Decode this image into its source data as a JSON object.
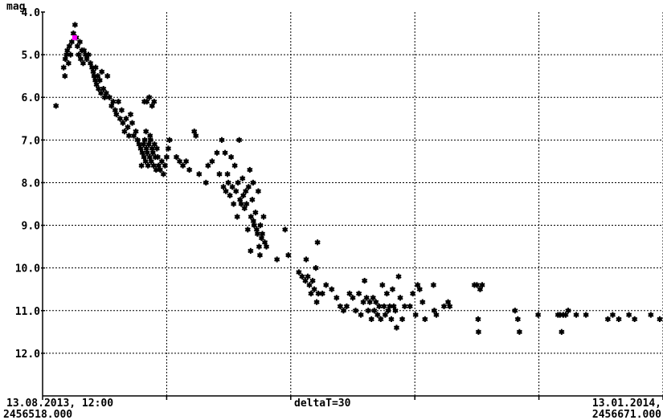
{
  "chart_data": {
    "type": "scatter",
    "ylabel": "mag",
    "y_inverted": true,
    "ylim": [
      4.0,
      13.0
    ],
    "xlim": [
      2456518.0,
      2456671.0
    ],
    "y_ticks": [
      "4.0",
      "5.0",
      "6.0",
      "7.0",
      "8.0",
      "9.0",
      "10.0",
      "11.0",
      "12.0"
    ],
    "x_start_label": "13.08.2013, 12:00",
    "x_start_jd": "2456518.000",
    "x_end_label": "13.01.2014,",
    "x_end_jd": "2456671.000",
    "x_center_label": "deltaT=30",
    "grid": true,
    "marker_color": "#000000",
    "highlight_color": "#ff00ff",
    "highlight_points": [
      [
        2456525.9,
        4.6
      ]
    ],
    "points": [
      [
        2456521.3,
        6.2
      ],
      [
        2456523.2,
        5.3
      ],
      [
        2456523.5,
        5.5
      ],
      [
        2456523.6,
        5.1
      ],
      [
        2456523.9,
        5.0
      ],
      [
        2456524.1,
        4.9
      ],
      [
        2456524.4,
        5.2
      ],
      [
        2456524.6,
        4.8
      ],
      [
        2456524.9,
        5.0
      ],
      [
        2456525.2,
        4.7
      ],
      [
        2456525.6,
        4.5
      ],
      [
        2456526.0,
        4.3
      ],
      [
        2456526.3,
        4.6
      ],
      [
        2456526.6,
        4.8
      ],
      [
        2456526.9,
        5.0
      ],
      [
        2456527.2,
        4.7
      ],
      [
        2456527.4,
        5.1
      ],
      [
        2456527.7,
        4.9
      ],
      [
        2456528.0,
        5.2
      ],
      [
        2456528.2,
        4.9
      ],
      [
        2456528.6,
        5.0
      ],
      [
        2456528.9,
        5.1
      ],
      [
        2456529.3,
        5.0
      ],
      [
        2456529.8,
        5.2
      ],
      [
        2456530.2,
        5.3
      ],
      [
        2456530.5,
        5.4
      ],
      [
        2456530.7,
        5.5
      ],
      [
        2456531.0,
        5.6
      ],
      [
        2456531.3,
        5.7
      ],
      [
        2456531.1,
        5.3
      ],
      [
        2456531.6,
        5.5
      ],
      [
        2456531.8,
        5.8
      ],
      [
        2456532.1,
        5.6
      ],
      [
        2456532.4,
        5.9
      ],
      [
        2456532.6,
        5.4
      ],
      [
        2456533.0,
        5.8
      ],
      [
        2456533.3,
        6.0
      ],
      [
        2456533.7,
        5.9
      ],
      [
        2456534.0,
        5.5
      ],
      [
        2456534.5,
        6.0
      ],
      [
        2456535.0,
        6.2
      ],
      [
        2456535.4,
        6.1
      ],
      [
        2456535.9,
        6.3
      ],
      [
        2456536.2,
        6.4
      ],
      [
        2456536.7,
        6.1
      ],
      [
        2456537.1,
        6.5
      ],
      [
        2456537.5,
        6.3
      ],
      [
        2456537.8,
        6.6
      ],
      [
        2456538.2,
        6.8
      ],
      [
        2456538.6,
        6.5
      ],
      [
        2456539.0,
        6.7
      ],
      [
        2456539.3,
        6.9
      ],
      [
        2456539.7,
        6.4
      ],
      [
        2456540.1,
        6.6
      ],
      [
        2456540.5,
        6.9
      ],
      [
        2456541.0,
        6.8
      ],
      [
        2456541.4,
        7.0
      ],
      [
        2456541.8,
        7.1
      ],
      [
        2456542.2,
        7.2
      ],
      [
        2456542.6,
        7.3
      ],
      [
        2456542.4,
        7.6
      ],
      [
        2456542.9,
        7.1
      ],
      [
        2456543.0,
        7.4
      ],
      [
        2456543.2,
        7.0
      ],
      [
        2456543.4,
        7.5
      ],
      [
        2456543.6,
        7.2
      ],
      [
        2456543.8,
        7.3
      ],
      [
        2456544.0,
        7.6
      ],
      [
        2456544.2,
        7.1
      ],
      [
        2456544.4,
        7.4
      ],
      [
        2456544.6,
        7.0
      ],
      [
        2456544.8,
        7.5
      ],
      [
        2456545.0,
        7.2
      ],
      [
        2456545.2,
        7.3
      ],
      [
        2456545.4,
        7.6
      ],
      [
        2456545.6,
        7.1
      ],
      [
        2456545.8,
        7.4
      ],
      [
        2456546.0,
        7.7
      ],
      [
        2456546.2,
        7.2
      ],
      [
        2456546.4,
        7.4
      ],
      [
        2456546.6,
        7.6
      ],
      [
        2456547.0,
        7.7
      ],
      [
        2456547.4,
        7.5
      ],
      [
        2456547.8,
        7.8
      ],
      [
        2456548.2,
        7.6
      ],
      [
        2456548.6,
        7.4
      ],
      [
        2456549.0,
        7.2
      ],
      [
        2456549.3,
        7.0
      ],
      [
        2456543.1,
        6.1
      ],
      [
        2456543.7,
        6.1
      ],
      [
        2456544.3,
        6.0
      ],
      [
        2456545.0,
        6.2
      ],
      [
        2456545.5,
        6.1
      ],
      [
        2456543.5,
        6.8
      ],
      [
        2456544.5,
        6.9
      ],
      [
        2456551.0,
        7.4
      ],
      [
        2456551.8,
        7.5
      ],
      [
        2456552.6,
        7.6
      ],
      [
        2456553.4,
        7.5
      ],
      [
        2456554.2,
        7.7
      ],
      [
        2456555.4,
        6.8
      ],
      [
        2456555.8,
        6.9
      ],
      [
        2456556.6,
        7.8
      ],
      [
        2456558.3,
        8.0
      ],
      [
        2456558.8,
        7.6
      ],
      [
        2456559.8,
        7.5
      ],
      [
        2456561.0,
        7.3
      ],
      [
        2456561.6,
        7.8
      ],
      [
        2456562.2,
        7.0
      ],
      [
        2456562.6,
        8.1
      ],
      [
        2456563.0,
        7.3
      ],
      [
        2456563.2,
        8.2
      ],
      [
        2456563.6,
        7.8
      ],
      [
        2456563.8,
        8.0
      ],
      [
        2456564.2,
        8.3
      ],
      [
        2456564.5,
        7.4
      ],
      [
        2456564.8,
        8.1
      ],
      [
        2456565.1,
        8.5
      ],
      [
        2456565.4,
        7.6
      ],
      [
        2456565.7,
        8.2
      ],
      [
        2456566.0,
        8.8
      ],
      [
        2456566.2,
        8.0
      ],
      [
        2456566.5,
        7.0
      ],
      [
        2456566.7,
        8.4
      ],
      [
        2456567.0,
        8.5
      ],
      [
        2456567.3,
        7.9
      ],
      [
        2456567.5,
        8.3
      ],
      [
        2456567.8,
        8.6
      ],
      [
        2456568.1,
        8.2
      ],
      [
        2456568.3,
        8.5
      ],
      [
        2456568.6,
        9.1
      ],
      [
        2456568.8,
        8.1
      ],
      [
        2456569.1,
        7.7
      ],
      [
        2456569.4,
        8.8
      ],
      [
        2456569.7,
        8.4
      ],
      [
        2456570.0,
        8.9
      ],
      [
        2456570.2,
        9.0
      ],
      [
        2456570.5,
        8.7
      ],
      [
        2456570.8,
        9.1
      ],
      [
        2456571.0,
        9.2
      ],
      [
        2456571.2,
        8.2
      ],
      [
        2456571.4,
        9.5
      ],
      [
        2456571.7,
        9.0
      ],
      [
        2456572.0,
        9.3
      ],
      [
        2456572.2,
        9.2
      ],
      [
        2456572.5,
        8.8
      ],
      [
        2456572.8,
        9.4
      ],
      [
        2456569.3,
        9.6
      ],
      [
        2456571.6,
        9.7
      ],
      [
        2456569.9,
        8.0
      ],
      [
        2456573.2,
        9.5
      ],
      [
        2456575.8,
        9.8
      ],
      [
        2456577.8,
        9.1
      ],
      [
        2456578.6,
        9.7
      ],
      [
        2456581.2,
        10.1
      ],
      [
        2456582.0,
        10.2
      ],
      [
        2456582.8,
        10.3
      ],
      [
        2456583.0,
        9.8
      ],
      [
        2456583.4,
        10.2
      ],
      [
        2456583.8,
        10.4
      ],
      [
        2456584.2,
        10.6
      ],
      [
        2456584.6,
        10.3
      ],
      [
        2456585.0,
        10.5
      ],
      [
        2456585.4,
        10.0
      ],
      [
        2456585.6,
        10.8
      ],
      [
        2456585.8,
        9.4
      ],
      [
        2456586.0,
        10.6
      ],
      [
        2456587.0,
        10.6
      ],
      [
        2456587.9,
        10.4
      ],
      [
        2456589.3,
        10.5
      ],
      [
        2456590.5,
        10.7
      ],
      [
        2456591.4,
        10.9
      ],
      [
        2456592.2,
        11.0
      ],
      [
        2456593.0,
        10.9
      ],
      [
        2456593.7,
        10.6
      ],
      [
        2456594.5,
        10.7
      ],
      [
        2456595.2,
        11.0
      ],
      [
        2456596.0,
        10.6
      ],
      [
        2456596.5,
        11.1
      ],
      [
        2456597.1,
        10.8
      ],
      [
        2456597.4,
        10.3
      ],
      [
        2456597.9,
        10.7
      ],
      [
        2456598.3,
        11.0
      ],
      [
        2456598.7,
        10.8
      ],
      [
        2456599.1,
        11.2
      ],
      [
        2456599.5,
        10.7
      ],
      [
        2456599.8,
        11.0
      ],
      [
        2456600.2,
        10.8
      ],
      [
        2456600.6,
        11.1
      ],
      [
        2456601.0,
        10.9
      ],
      [
        2456601.4,
        11.2
      ],
      [
        2456601.8,
        10.4
      ],
      [
        2456602.2,
        10.9
      ],
      [
        2456602.5,
        11.1
      ],
      [
        2456602.9,
        10.6
      ],
      [
        2456603.2,
        11.0
      ],
      [
        2456603.6,
        10.9
      ],
      [
        2456604.0,
        11.2
      ],
      [
        2456604.3,
        10.5
      ],
      [
        2456604.6,
        10.9
      ],
      [
        2456605.0,
        11.0
      ],
      [
        2456605.3,
        11.4
      ],
      [
        2456605.8,
        10.2
      ],
      [
        2456606.2,
        10.7
      ],
      [
        2456606.7,
        11.2
      ],
      [
        2456607.3,
        10.9
      ],
      [
        2456608.6,
        10.9
      ],
      [
        2456609.3,
        10.6
      ],
      [
        2456610.0,
        11.1
      ],
      [
        2456610.5,
        10.4
      ],
      [
        2456611.0,
        10.5
      ],
      [
        2456611.7,
        10.8
      ],
      [
        2456612.3,
        11.2
      ],
      [
        2456614.4,
        10.4
      ],
      [
        2456614.6,
        11.0
      ],
      [
        2456615.1,
        11.1
      ],
      [
        2456617.0,
        10.9
      ],
      [
        2456618.0,
        10.8
      ],
      [
        2456618.4,
        10.9
      ],
      [
        2456624.5,
        10.4
      ],
      [
        2456625.1,
        10.4
      ],
      [
        2456625.4,
        11.2
      ],
      [
        2456625.5,
        11.5
      ],
      [
        2456625.9,
        10.5
      ],
      [
        2456626.4,
        10.4
      ],
      [
        2456634.5,
        11.0
      ],
      [
        2456635.2,
        11.2
      ],
      [
        2456635.6,
        11.5
      ],
      [
        2456640.2,
        11.1
      ],
      [
        2456645.1,
        11.1
      ],
      [
        2456645.6,
        11.1
      ],
      [
        2456646.0,
        11.5
      ],
      [
        2456646.4,
        11.1
      ],
      [
        2456647.0,
        11.1
      ],
      [
        2456647.6,
        11.0
      ],
      [
        2456649.6,
        11.1
      ],
      [
        2456652.0,
        11.1
      ],
      [
        2456657.4,
        11.2
      ],
      [
        2456658.6,
        11.1
      ],
      [
        2456660.1,
        11.2
      ],
      [
        2456662.6,
        11.1
      ],
      [
        2456664.0,
        11.2
      ],
      [
        2456668.0,
        11.1
      ],
      [
        2456670.2,
        11.2
      ]
    ]
  }
}
